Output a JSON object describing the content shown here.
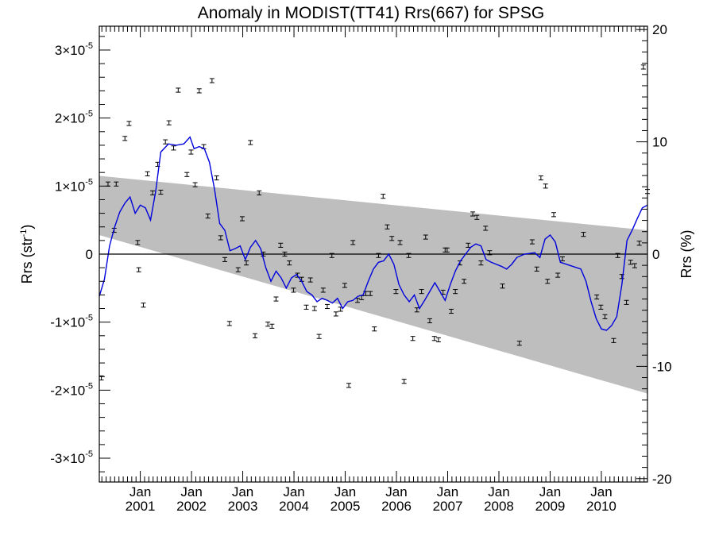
{
  "chart_data": {
    "type": "scatter",
    "title": "Anomaly in MODIST(TT41) Rrs(667) for SPSG",
    "ylabel_left": {
      "base": "Rrs (str",
      "sup": "-1",
      "close": ")"
    },
    "ylabel_right": "Rrs (%)",
    "x_range": [
      2000.2,
      2010.9
    ],
    "y_range": [
      -3.35e-05,
      3.35e-05
    ],
    "y2_range": [
      -20.3,
      20.3
    ],
    "y_ticks": [
      {
        "value": -3e-05,
        "mant": "-3",
        "exp": "-5"
      },
      {
        "value": -2e-05,
        "mant": "-2",
        "exp": "-5"
      },
      {
        "value": -1e-05,
        "mant": "-1",
        "exp": "-5"
      },
      {
        "value": 0,
        "label": "0"
      },
      {
        "value": 1e-05,
        "mant": "1",
        "exp": "-5"
      },
      {
        "value": 2e-05,
        "mant": "2",
        "exp": "-5"
      },
      {
        "value": 3e-05,
        "mant": "3",
        "exp": "-5"
      }
    ],
    "y2_ticks": [
      {
        "value": -20,
        "label": "-20"
      },
      {
        "value": -10,
        "label": "-10"
      },
      {
        "value": 0,
        "label": "0"
      },
      {
        "value": 10,
        "label": "10"
      },
      {
        "value": 20,
        "label": "20"
      }
    ],
    "x_ticks": [
      {
        "value": 2001.0,
        "month": "Jan",
        "year": "2001"
      },
      {
        "value": 2002.0,
        "month": "Jan",
        "year": "2002"
      },
      {
        "value": 2003.0,
        "month": "Jan",
        "year": "2003"
      },
      {
        "value": 2004.0,
        "month": "Jan",
        "year": "2004"
      },
      {
        "value": 2005.0,
        "month": "Jan",
        "year": "2005"
      },
      {
        "value": 2006.0,
        "month": "Jan",
        "year": "2006"
      },
      {
        "value": 2007.0,
        "month": "Jan",
        "year": "2007"
      },
      {
        "value": 2008.0,
        "month": "Jan",
        "year": "2008"
      },
      {
        "value": 2009.0,
        "month": "Jan",
        "year": "2009"
      },
      {
        "value": 2010.0,
        "month": "Jan",
        "year": "2010"
      }
    ],
    "zero_line": true,
    "band": {
      "color": "#bebebe",
      "upper": [
        [
          2000.2,
          1.15e-05
        ],
        [
          2010.9,
          3.5e-06
        ]
      ],
      "lower": [
        [
          2000.2,
          2.8e-06
        ],
        [
          2010.9,
          -2.05e-05
        ]
      ]
    },
    "points": {
      "color": "#000000",
      "err": 3e-07,
      "data": [
        [
          2000.24,
          -1.82e-05
        ],
        [
          2000.37,
          1.03e-05
        ],
        [
          2000.49,
          3.5e-06
        ],
        [
          2000.53,
          1.03e-05
        ],
        [
          2000.7,
          1.7e-05
        ],
        [
          2000.78,
          1.92e-05
        ],
        [
          2000.95,
          1.7e-06
        ],
        [
          2000.97,
          -2.3e-06
        ],
        [
          2001.06,
          -7.5e-06
        ],
        [
          2001.14,
          1.18e-05
        ],
        [
          2001.24,
          9e-06
        ],
        [
          2001.34,
          1.32e-05
        ],
        [
          2001.4,
          9.1e-06
        ],
        [
          2001.49,
          1.65e-05
        ],
        [
          2001.56,
          1.93e-05
        ],
        [
          2001.65,
          1.56e-05
        ],
        [
          2001.74,
          2.41e-05
        ],
        [
          2001.91,
          1.17e-05
        ],
        [
          2001.99,
          1.5e-05
        ],
        [
          2002.07,
          1.02e-05
        ],
        [
          2002.15,
          2.4e-05
        ],
        [
          2002.24,
          1.58e-05
        ],
        [
          2002.32,
          5.6e-06
        ],
        [
          2002.4,
          2.55e-05
        ],
        [
          2002.49,
          1.12e-05
        ],
        [
          2002.57,
          2.4e-06
        ],
        [
          2002.65,
          -8e-07
        ],
        [
          2002.74,
          -1.02e-05
        ],
        [
          2002.91,
          -2.3e-06
        ],
        [
          2002.99,
          5.2e-06
        ],
        [
          2003.07,
          -1.3e-06
        ],
        [
          2003.15,
          1.64e-05
        ],
        [
          2003.24,
          -1.2e-05
        ],
        [
          2003.32,
          9e-06
        ],
        [
          2003.4,
          0.0
        ],
        [
          2003.49,
          -1.03e-05
        ],
        [
          2003.57,
          -1.06e-05
        ],
        [
          2003.65,
          -6.6e-06
        ],
        [
          2003.74,
          1.3e-06
        ],
        [
          2003.82,
          0.0
        ],
        [
          2003.91,
          -1.3e-06
        ],
        [
          2003.99,
          -5.3e-06
        ],
        [
          2004.07,
          -3.1e-06
        ],
        [
          2004.15,
          -3.7e-06
        ],
        [
          2004.24,
          -7.8e-06
        ],
        [
          2004.32,
          -3.8e-06
        ],
        [
          2004.4,
          -8e-06
        ],
        [
          2004.49,
          -1.21e-05
        ],
        [
          2004.57,
          -5.3e-06
        ],
        [
          2004.65,
          -7.7e-06
        ],
        [
          2004.74,
          -2e-07
        ],
        [
          2004.82,
          -8.8e-06
        ],
        [
          2004.91,
          -8.1e-06
        ],
        [
          2004.99,
          -4.6e-06
        ],
        [
          2005.07,
          -1.93e-05
        ],
        [
          2005.15,
          1.7e-06
        ],
        [
          2005.24,
          -6.8e-06
        ],
        [
          2005.32,
          -6.4e-06
        ],
        [
          2005.4,
          -5.8e-06
        ],
        [
          2005.49,
          -5.8e-06
        ],
        [
          2005.57,
          -1.1e-05
        ],
        [
          2005.65,
          -2e-07
        ],
        [
          2005.74,
          8.5e-06
        ],
        [
          2005.82,
          4e-06
        ],
        [
          2005.91,
          2.3e-06
        ],
        [
          2005.99,
          -5.5e-06
        ],
        [
          2006.07,
          1.7e-06
        ],
        [
          2006.15,
          -1.87e-05
        ],
        [
          2006.24,
          -2e-07
        ],
        [
          2006.32,
          -1.24e-05
        ],
        [
          2006.4,
          -8.2e-06
        ],
        [
          2006.49,
          -5.5e-06
        ],
        [
          2006.57,
          2.5e-06
        ],
        [
          2006.65,
          -9.8e-06
        ],
        [
          2006.74,
          -1.24e-05
        ],
        [
          2006.82,
          -1.26e-05
        ],
        [
          2006.91,
          -5.6e-06
        ],
        [
          2006.95,
          6e-07
        ],
        [
          2006.99,
          6e-07
        ],
        [
          2007.07,
          -8.4e-06
        ],
        [
          2007.15,
          -5.5e-06
        ],
        [
          2007.24,
          -1.3e-06
        ],
        [
          2007.32,
          -4e-06
        ],
        [
          2007.4,
          1.3e-06
        ],
        [
          2007.49,
          5.9e-06
        ],
        [
          2007.57,
          5.4e-06
        ],
        [
          2007.65,
          -1.3e-06
        ],
        [
          2007.74,
          3.8e-06
        ],
        [
          2007.82,
          2e-07
        ],
        [
          2008.07,
          -4.7e-06
        ],
        [
          2008.4,
          -1.31e-05
        ],
        [
          2008.65,
          1.8e-06
        ],
        [
          2008.74,
          -2.2e-06
        ],
        [
          2008.82,
          1.12e-05
        ],
        [
          2008.91,
          1e-05
        ],
        [
          2008.95,
          -4e-06
        ],
        [
          2009.07,
          5.8e-06
        ],
        [
          2009.15,
          -3.1e-06
        ],
        [
          2009.24,
          -7e-07
        ],
        [
          2009.65,
          2.9e-06
        ],
        [
          2009.91,
          -6.3e-06
        ],
        [
          2009.99,
          -7.8e-06
        ],
        [
          2010.07,
          -9.2e-06
        ],
        [
          2010.24,
          -1.27e-05
        ],
        [
          2010.32,
          -2e-07
        ],
        [
          2010.4,
          -3.3e-06
        ],
        [
          2010.49,
          -7.1e-06
        ],
        [
          2010.57,
          -1.2e-06
        ],
        [
          2010.65,
          -1.7e-06
        ],
        [
          2010.74,
          1.6e-06
        ],
        [
          2010.82,
          2.75e-05
        ],
        [
          2010.9,
          9.2e-06
        ]
      ]
    },
    "line": {
      "color": "#0000dd",
      "data": [
        [
          2000.2,
          -6.2e-06
        ],
        [
          2000.3,
          -3.7e-06
        ],
        [
          2000.4,
          1.2e-06
        ],
        [
          2000.5,
          4e-06
        ],
        [
          2000.6,
          6.2e-06
        ],
        [
          2000.7,
          7.5e-06
        ],
        [
          2000.8,
          8.4e-06
        ],
        [
          2000.9,
          6e-06
        ],
        [
          2001.0,
          7.2e-06
        ],
        [
          2001.1,
          6.8e-06
        ],
        [
          2001.2,
          5e-06
        ],
        [
          2001.3,
          9.2e-06
        ],
        [
          2001.4,
          1.5e-05
        ],
        [
          2001.55,
          1.62e-05
        ],
        [
          2001.7,
          1.6e-05
        ],
        [
          2001.85,
          1.62e-05
        ],
        [
          2001.97,
          1.72e-05
        ],
        [
          2002.05,
          1.55e-05
        ],
        [
          2002.15,
          1.58e-05
        ],
        [
          2002.25,
          1.55e-05
        ],
        [
          2002.35,
          1.35e-05
        ],
        [
          2002.45,
          9.5e-06
        ],
        [
          2002.55,
          4.5e-06
        ],
        [
          2002.65,
          3.5e-06
        ],
        [
          2002.75,
          5e-07
        ],
        [
          2002.85,
          8e-07
        ],
        [
          2002.95,
          1.2e-06
        ],
        [
          2003.05,
          -8e-07
        ],
        [
          2003.15,
          1e-06
        ],
        [
          2003.25,
          2e-06
        ],
        [
          2003.35,
          8e-07
        ],
        [
          2003.45,
          -2e-06
        ],
        [
          2003.55,
          -4e-06
        ],
        [
          2003.65,
          -2.5e-06
        ],
        [
          2003.75,
          -3.5e-06
        ],
        [
          2003.85,
          -5e-06
        ],
        [
          2003.95,
          -3.5e-06
        ],
        [
          2004.05,
          -3e-06
        ],
        [
          2004.15,
          -4e-06
        ],
        [
          2004.25,
          -5.5e-06
        ],
        [
          2004.35,
          -6e-06
        ],
        [
          2004.45,
          -7e-06
        ],
        [
          2004.55,
          -6.5e-06
        ],
        [
          2004.65,
          -6.8e-06
        ],
        [
          2004.75,
          -7.2e-06
        ],
        [
          2004.85,
          -6.5e-06
        ],
        [
          2004.95,
          -8e-06
        ],
        [
          2005.05,
          -7e-06
        ],
        [
          2005.15,
          -6.8e-06
        ],
        [
          2005.25,
          -6.2e-06
        ],
        [
          2005.35,
          -6e-06
        ],
        [
          2005.45,
          -4e-06
        ],
        [
          2005.55,
          -2.2e-06
        ],
        [
          2005.65,
          -1.2e-06
        ],
        [
          2005.75,
          -1e-06
        ],
        [
          2005.85,
          0.0
        ],
        [
          2005.95,
          -1.5e-06
        ],
        [
          2006.05,
          -4.5e-06
        ],
        [
          2006.15,
          -6e-06
        ],
        [
          2006.25,
          -7e-06
        ],
        [
          2006.35,
          -6e-06
        ],
        [
          2006.45,
          -8e-06
        ],
        [
          2006.55,
          -6.8e-06
        ],
        [
          2006.65,
          -5.5e-06
        ],
        [
          2006.75,
          -4.2e-06
        ],
        [
          2006.85,
          -5.5e-06
        ],
        [
          2006.95,
          -6.8e-06
        ],
        [
          2007.05,
          -4.5e-06
        ],
        [
          2007.15,
          -2.5e-06
        ],
        [
          2007.25,
          -1e-06
        ],
        [
          2007.35,
          0.0
        ],
        [
          2007.45,
          1e-06
        ],
        [
          2007.55,
          1.5e-06
        ],
        [
          2007.65,
          1.2e-06
        ],
        [
          2007.75,
          -8e-07
        ],
        [
          2007.85,
          -1.2e-06
        ],
        [
          2007.95,
          -1.5e-06
        ],
        [
          2008.05,
          -1.8e-06
        ],
        [
          2008.15,
          -2.2e-06
        ],
        [
          2008.25,
          -1.5e-06
        ],
        [
          2008.35,
          -5e-07
        ],
        [
          2008.5,
          0.0
        ],
        [
          2008.7,
          2e-07
        ],
        [
          2008.8,
          -5e-07
        ],
        [
          2008.9,
          2.2e-06
        ],
        [
          2009.0,
          2.8e-06
        ],
        [
          2009.1,
          1.8e-06
        ],
        [
          2009.2,
          -1.2e-06
        ],
        [
          2009.4,
          -1.7e-06
        ],
        [
          2009.6,
          -2.2e-06
        ],
        [
          2009.7,
          -4e-06
        ],
        [
          2009.8,
          -7e-06
        ],
        [
          2009.9,
          -9.5e-06
        ],
        [
          2010.0,
          -1.1e-05
        ],
        [
          2010.1,
          -1.12e-05
        ],
        [
          2010.2,
          -1.05e-05
        ],
        [
          2010.3,
          -9.2e-06
        ],
        [
          2010.4,
          -4.5e-06
        ],
        [
          2010.5,
          2e-06
        ],
        [
          2010.6,
          3.5e-06
        ],
        [
          2010.7,
          5.2e-06
        ],
        [
          2010.8,
          6.8e-06
        ],
        [
          2010.9,
          7.2e-06
        ]
      ]
    }
  }
}
